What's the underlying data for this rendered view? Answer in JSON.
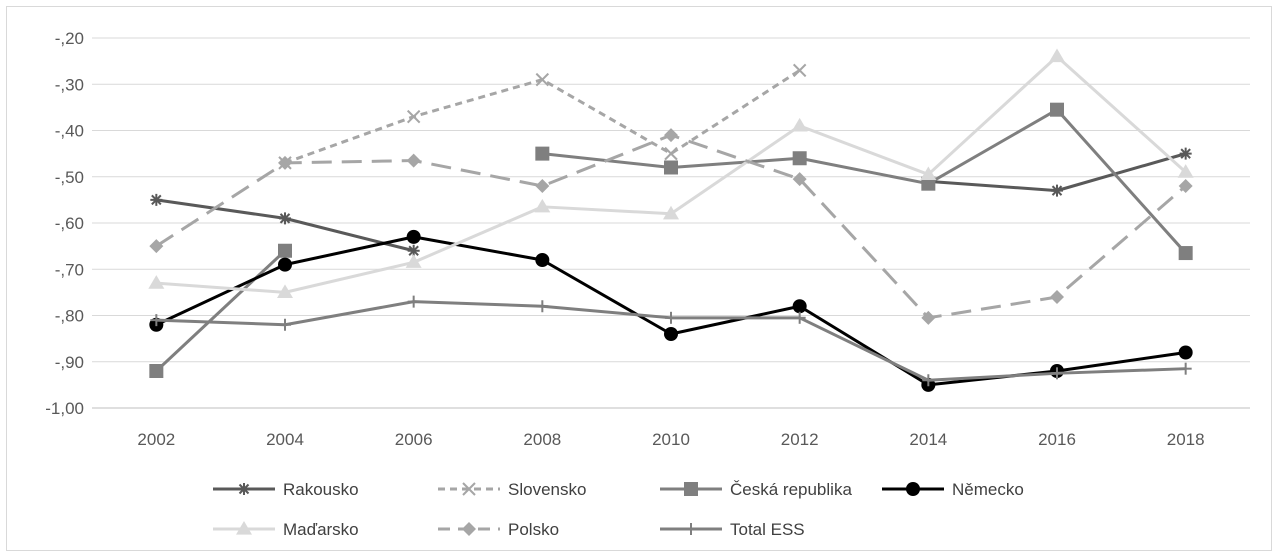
{
  "chart_data": {
    "type": "line",
    "title": "",
    "xlabel": "",
    "ylabel": "",
    "categories": [
      "2002",
      "2004",
      "2006",
      "2008",
      "2010",
      "2012",
      "2014",
      "2016",
      "2018"
    ],
    "ylim": [
      -1.0,
      -0.2
    ],
    "yticks": [
      -0.2,
      -0.3,
      -0.4,
      -0.5,
      -0.6,
      -0.7,
      -0.8,
      -0.9,
      -1.0
    ],
    "ytick_labels": [
      "-,20",
      "-,30",
      "-,40",
      "-,50",
      "-,60",
      "-,70",
      "-,80",
      "-,90",
      "-1,00"
    ],
    "grid": true,
    "legend_position": "bottom",
    "series": [
      {
        "name": "Rakousko",
        "color": "#595959",
        "dash": "solid",
        "marker": "asterisk",
        "values": [
          -0.55,
          -0.59,
          -0.66,
          null,
          null,
          null,
          -0.51,
          -0.53,
          -0.45
        ]
      },
      {
        "name": "Slovensko",
        "color": "#a6a6a6",
        "dash": "dashed-short",
        "marker": "x",
        "values": [
          null,
          -0.47,
          -0.37,
          -0.29,
          -0.45,
          -0.27,
          null,
          null,
          null
        ]
      },
      {
        "name": "Česká republika",
        "color": "#7f7f7f",
        "dash": "solid",
        "marker": "square",
        "values": [
          -0.92,
          -0.66,
          null,
          -0.45,
          -0.48,
          -0.46,
          -0.515,
          -0.355,
          -0.665
        ]
      },
      {
        "name": "Německo",
        "color": "#000000",
        "dash": "solid",
        "marker": "circle",
        "values": [
          -0.82,
          -0.69,
          -0.63,
          -0.68,
          -0.84,
          -0.78,
          -0.95,
          -0.92,
          -0.88
        ]
      },
      {
        "name": "Maďarsko",
        "color": "#d9d9d9",
        "dash": "solid",
        "marker": "triangle",
        "values": [
          -0.73,
          -0.75,
          -0.685,
          -0.565,
          -0.58,
          -0.39,
          -0.495,
          -0.24,
          -0.49
        ]
      },
      {
        "name": "Polsko",
        "color": "#a6a6a6",
        "dash": "dashed-long",
        "marker": "diamond",
        "values": [
          -0.65,
          -0.47,
          -0.465,
          -0.52,
          -0.41,
          -0.505,
          -0.805,
          -0.76,
          -0.52
        ]
      },
      {
        "name": "Total ESS",
        "color": "#7f7f7f",
        "dash": "solid",
        "marker": "plus",
        "values": [
          -0.81,
          -0.82,
          -0.77,
          -0.78,
          -0.805,
          -0.805,
          -0.94,
          -0.925,
          -0.915
        ]
      }
    ]
  }
}
